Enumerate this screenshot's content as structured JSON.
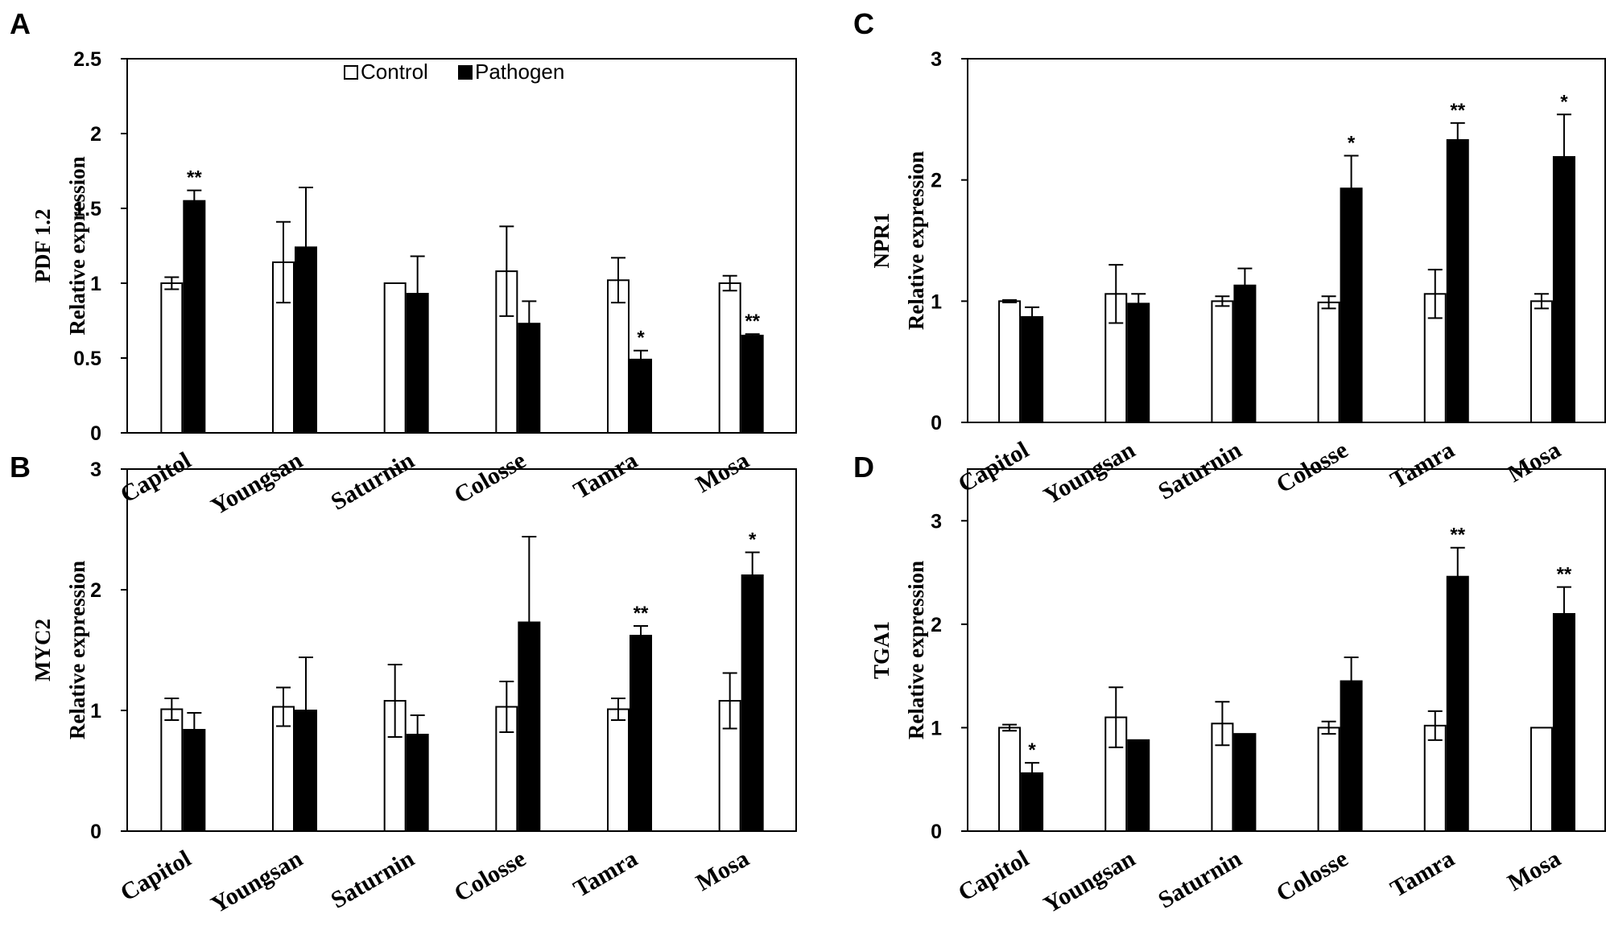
{
  "legend": {
    "control": "Control",
    "pathogen": "Pathogen"
  },
  "colors": {
    "control": "#ffffff",
    "pathogen": "#000000",
    "stroke": "#000000"
  },
  "chart_data": [
    {
      "panel": "A",
      "type": "bar",
      "ylabel_gene": "PDF 1.2",
      "ylabel": "Relative  expression",
      "ylim": [
        0,
        2.5
      ],
      "yticks": [
        "0",
        "0.5",
        "1",
        "1.5",
        "2",
        "2.5"
      ],
      "categories": [
        "Capitol",
        "Youngsan",
        "Saturnin",
        "Colosse",
        "Tamra",
        "Mosa"
      ],
      "series": [
        {
          "name": "Control",
          "values": [
            1.0,
            1.14,
            1.0,
            1.08,
            1.02,
            1.0
          ],
          "errors": [
            0.04,
            0.27,
            0.0,
            0.3,
            0.15,
            0.05
          ]
        },
        {
          "name": "Pathogen",
          "values": [
            1.55,
            1.24,
            0.93,
            0.73,
            0.49,
            0.65
          ],
          "errors": [
            0.07,
            0.4,
            0.25,
            0.15,
            0.06,
            0.01
          ],
          "significance": [
            "**",
            "",
            "",
            "",
            "*",
            "**"
          ]
        }
      ]
    },
    {
      "panel": "B",
      "type": "bar",
      "ylabel_gene": "MYC2",
      "ylabel": "Relative  expression",
      "ylim": [
        0,
        3
      ],
      "yticks": [
        "0",
        "1",
        "2",
        "3"
      ],
      "categories": [
        "Capitol",
        "Youngsan",
        "Saturnin",
        "Colosse",
        "Tamra",
        "Mosa"
      ],
      "series": [
        {
          "name": "Control",
          "values": [
            1.01,
            1.03,
            1.08,
            1.03,
            1.01,
            1.08
          ],
          "errors": [
            0.09,
            0.16,
            0.3,
            0.21,
            0.09,
            0.23
          ]
        },
        {
          "name": "Pathogen",
          "values": [
            0.84,
            1.0,
            0.8,
            1.73,
            1.62,
            2.12
          ],
          "errors": [
            0.14,
            0.44,
            0.16,
            0.71,
            0.08,
            0.19
          ],
          "significance": [
            "",
            "",
            "",
            "",
            "**",
            "*"
          ]
        }
      ]
    },
    {
      "panel": "C",
      "type": "bar",
      "ylabel_gene": "NPR1",
      "ylabel": "Relative  expression",
      "ylim": [
        0,
        3
      ],
      "yticks": [
        "0",
        "1",
        "2",
        "3"
      ],
      "categories": [
        "Capitol",
        "Youngsan",
        "Saturnin",
        "Colosse",
        "Tamra",
        "Mosa"
      ],
      "series": [
        {
          "name": "Control",
          "values": [
            1.0,
            1.06,
            1.0,
            0.99,
            1.06,
            1.0
          ],
          "errors": [
            0.01,
            0.24,
            0.04,
            0.05,
            0.2,
            0.06
          ]
        },
        {
          "name": "Pathogen",
          "values": [
            0.87,
            0.98,
            1.13,
            1.93,
            2.33,
            2.19
          ],
          "errors": [
            0.08,
            0.08,
            0.14,
            0.27,
            0.14,
            0.35
          ],
          "significance": [
            "",
            "",
            "",
            "*",
            "**",
            "*"
          ]
        }
      ]
    },
    {
      "panel": "D",
      "type": "bar",
      "ylabel_gene": "TGA1",
      "ylabel": "Relative  expression",
      "ylim": [
        0,
        3.5
      ],
      "yticks": [
        "0",
        "1",
        "2",
        "3"
      ],
      "categories": [
        "Capitol",
        "Youngsan",
        "Saturnin",
        "Colosse",
        "Tamra",
        "Mosa"
      ],
      "series": [
        {
          "name": "Control",
          "values": [
            1.0,
            1.1,
            1.04,
            1.0,
            1.02,
            1.0
          ],
          "errors": [
            0.03,
            0.29,
            0.21,
            0.06,
            0.14,
            0.0
          ]
        },
        {
          "name": "Pathogen",
          "values": [
            0.56,
            0.88,
            0.94,
            1.45,
            2.46,
            2.1
          ],
          "errors": [
            0.1,
            0.0,
            0.0,
            0.23,
            0.28,
            0.26
          ],
          "significance": [
            "*",
            "",
            "",
            "",
            "**",
            "**"
          ]
        }
      ]
    }
  ]
}
